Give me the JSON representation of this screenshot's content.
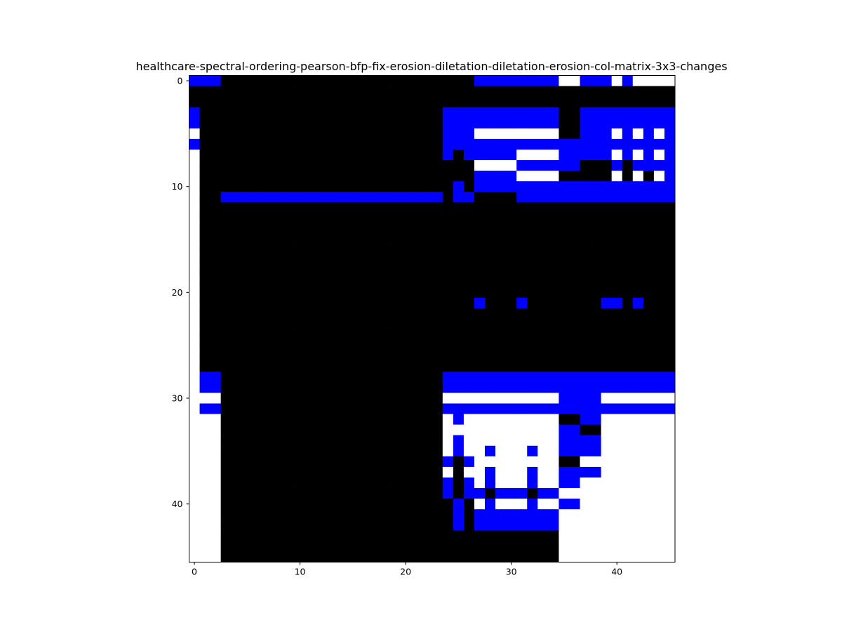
{
  "chart_data": {
    "type": "heatmap",
    "title": "healthcare-spectral-ordering-pearson-bfp-fix-erosion-diletation-diletation-erosion-col-matrix-3x3-changes",
    "xlabel": "",
    "ylabel": "",
    "n_rows": 46,
    "n_cols": 46,
    "xlim": [
      -0.5,
      45.5
    ],
    "ylim": [
      45.5,
      -0.5
    ],
    "x_ticks": [
      0,
      10,
      20,
      30,
      40
    ],
    "y_ticks": [
      0,
      10,
      20,
      30,
      40
    ],
    "x_tick_labels": [
      "0",
      "10",
      "20",
      "30",
      "40"
    ],
    "y_tick_labels": [
      "0",
      "10",
      "20",
      "30",
      "40"
    ],
    "grid": false,
    "legend": "none",
    "colors": {
      "W": "#ffffff",
      "K": "#000000",
      "B": "#0000ff"
    },
    "legend_key": {
      "W": "0 (white)",
      "K": "1 (black)",
      "B": "2 (blue)"
    },
    "rows": [
      "BBBKKKKKKKKKKKKKKKKKKKKKKKKBBBBBBBBWWBBBWBWWWW",
      "KKKKKKKKKKKKKKKKKKKKKKKKKKKKKKKKKKKKKKKKKKKKKK",
      "KKKKKKKKKKKKKKKKKKKKKKKKKKKKKKKKKKKKKKKKKKKKKK",
      "BKKKKKKKKKKKKKKKKKKKKKKKBBBBBBBBBBBKKBBBBBBBBB",
      "BKKKKKKKKKKKKKKKKKKKKKKKBBBBBBBBBBBKKBBBBBBBBB",
      "WKKKKKKKKKKKKKKKKKKKKKKKBBBWWWWWWWWKKBBBWBWBWB",
      "BKKKKKKKKKKKKKKKKKKKKKKKBBBBBBBBBBBBBBBBBBBBBB",
      "WKKKKKKKKKKKKKKKKKKKKKKKBKBBBBBWWWWBBBBBWBWBWB",
      "WKKKKKKKKKKKKKKKKKKKKKKKKKKWWWWBBBBBBKKKBKBBBB",
      "WKKKKKKKKKKKKKKKKKKKKKKKKKKBBBBWWWWKKKKKWKWKWB",
      "WKKKKKKKKKKKKKKKKKKKKKKKKBKBBBBBBBBBBBBBBBBBBB",
      "WKKBBBBBBBBBBBBBBBBBBBBBKBBKKKKBBBBBBBBBBBBBBB",
      "WKKKKKKKKKKKKKKKKKKKKKKKKKKKKKKKKKKKKKKKKKKKKK",
      "WKKKKKKKKKKKKKKKKKKKKKKKKKKKKKKKKKKKKKKKKKKKKK",
      "WKKKKKKKKKKKKKKKKKKKKKKKKKKKKKKKKKKKKKKKKKKKKK",
      "WKKKKKKKKKKKKKKKKKKKKKKKKKKKKKKKKKKKKKKKKKKKKK",
      "WKKKKKKKKKKKKKKKKKKKKKKKKKKKKKKKKKKKKKKKKKKKKK",
      "WKKKKKKKKKKKKKKKKKKKKKKKKKKKKKKKKKKKKKKKKKKKKK",
      "WKKKKKKKKKKKKKKKKKKKKKKKKKKKKKKKKKKKKKKKKKKKKK",
      "WKKKKKKKKKKKKKKKKKKKKKKKKKKKKKKKKKKKKKKKKKKKKK",
      "WKKKKKKKKKKKKKKKKKKKKKKKKKKKKKKKKKKKKKKKKKKKKK",
      "WKKKKKKKKKKKKKKKKKKKKKKKKKKBKKKBKKKKKKKBBKBKKK",
      "WKKKKKKKKKKKKKKKKKKKKKKKKKKKKKKKKKKKKKKKKKKKKK",
      "WKKKKKKKKKKKKKKKKKKKKKKKKKKKKKKKKKKKKKKKKKKKKK",
      "WKKKKKKKKKKKKKKKKKKKKKKKKKKKKKKKKKKKKKKKKKKKKK",
      "WKKKKKKKKKKKKKKKKKKKKKKKKKKKKKKKKKKKKKKKKKKKKK",
      "WKKKKKKKKKKKKKKKKKKKKKKKKKKKKKKKKKKKKKKKKKKKKK",
      "WKKKKKKKKKKKKKKKKKKKKKKKKKKKKKKKKKKKKKKKKKKKKK",
      "WBBKKKKKKKKKKKKKKKKKKKKKBBBBBBBBBBBBBBBBBBBBBB",
      "WBBKKKKKKKKKKKKKKKKKKKKKBBBBBBBBBBBBBBBBBBBBBB",
      "WWWKKKKKKKKKKKKKKKKKKKKKWWWWWWWWWWWBBBBWWWWWWW",
      "WBBKKKKKKKKKKKKKKKKKKKKKBBBBBBBBBBBBBBBBBBBBBB",
      "WWWKKKKKKKKKKKKKKKKKKKKKWBWWWWWWWWWKKBBWWWWWWW",
      "WWWKKKKKKKKKKKKKKKKKKKKKWWWWWWWWWWWBBKKWWWWWWW",
      "WWWKKKKKKKKKKKKKKKKKKKKKWBWWWWWWWWWBBBBWWWWWWW",
      "WWWKKKKKKKKKKKKKKKKKKKKKWBWWBWWWBWWBBBBWWWWWWW",
      "WWWKKKKKKKKKKKKKKKKKKKKKBKBWWWWWWWWKKWWWWWWWWW",
      "WWWKKKKKKKKKKKKKKKKKKKKKWKWWBWWWBWWBBBBWWWWWWW",
      "WWWKKKKKKKKKKKKKKKKKKKKKBKBWBWWWBWWBBWWWWWWWWW",
      "WWWKKKKKKKKKKKKKKKKKKKKKBKBBKBBBKBBWWWWWWWWWWW",
      "WWWKKKKKKKKKKKKKKKKKKKKKKBKWBWWWBWWBBWWWWWWWWW",
      "WWWKKKKKKKKKKKKKKKKKKKKKKBKBBBBBBBBWWWWWWWWWWW",
      "WWWKKKKKKKKKKKKKKKKKKKKKKBKBBBBBBBBWWWWWWWWWWW",
      "WWWKKKKKKKKKKKKKKKKKKKKKKKKKKKKKKKKWWWWWWWWWWW",
      "WWWKKKKKKKKKKKKKKKKKKKKKKKKKKKKKKKKWWWWWWWWWWW",
      "WWWKKKKKKKKKKKKKKKKKKKKKKKKKKKKKKKKWWWWWWWWWWW"
    ]
  }
}
